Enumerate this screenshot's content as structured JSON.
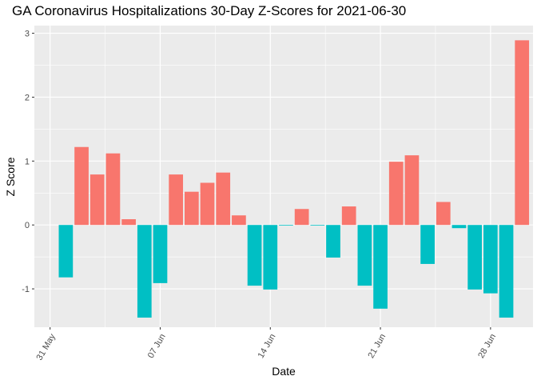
{
  "chart_data": {
    "type": "bar",
    "title": "GA Coronavirus Hospitalizations 30-Day Z-Scores for 2021-06-30",
    "xlabel": "Date",
    "ylabel": "Z Score",
    "ylim": [
      -1.6,
      3.12
    ],
    "y_ticks": [
      -1,
      0,
      1,
      2,
      3
    ],
    "x_ticks": [
      {
        "label": "31 May",
        "day": 0
      },
      {
        "label": "07 Jun",
        "day": 7
      },
      {
        "label": "14 Jun",
        "day": 14
      },
      {
        "label": "21 Jun",
        "day": 21
      },
      {
        "label": "28 Jun",
        "day": 28
      }
    ],
    "x_range_days": [
      -1.0,
      30.7
    ],
    "grid": true,
    "colors": {
      "positive": "#F8766D",
      "negative": "#00BFC4",
      "panel": "#EBEBEB",
      "grid": "#FFFFFF"
    },
    "categories": [
      "2021-06-01",
      "2021-06-02",
      "2021-06-03",
      "2021-06-04",
      "2021-06-05",
      "2021-06-06",
      "2021-06-07",
      "2021-06-08",
      "2021-06-09",
      "2021-06-10",
      "2021-06-11",
      "2021-06-12",
      "2021-06-13",
      "2021-06-14",
      "2021-06-15",
      "2021-06-16",
      "2021-06-17",
      "2021-06-18",
      "2021-06-19",
      "2021-06-20",
      "2021-06-21",
      "2021-06-22",
      "2021-06-23",
      "2021-06-24",
      "2021-06-25",
      "2021-06-26",
      "2021-06-27",
      "2021-06-28",
      "2021-06-29",
      "2021-06-30"
    ],
    "values": [
      -0.82,
      1.22,
      0.79,
      1.12,
      0.09,
      -1.45,
      -0.91,
      0.79,
      0.52,
      0.66,
      0.82,
      0.15,
      -0.95,
      -1.01,
      -0.01,
      0.25,
      -0.01,
      -0.51,
      0.29,
      -0.95,
      -1.31,
      0.99,
      1.09,
      -0.61,
      0.36,
      -0.05,
      -1.01,
      -1.07,
      -1.45,
      2.89
    ]
  }
}
